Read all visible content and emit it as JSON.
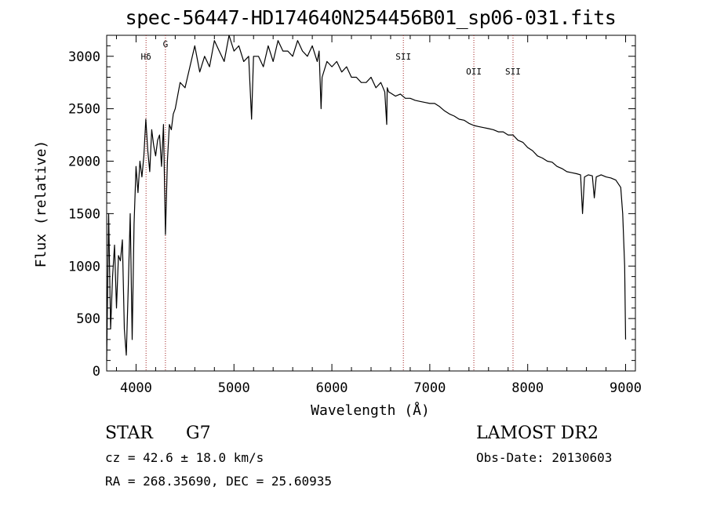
{
  "chart_data": {
    "type": "line",
    "title": "spec-56447-HD174640N254456B01_sp06-031.fits",
    "xlabel": "Wavelength (Å)",
    "ylabel": "Flux (relative)",
    "xlim": [
      3700,
      9100
    ],
    "ylim": [
      0,
      3200
    ],
    "xticks": [
      4000,
      5000,
      6000,
      7000,
      8000,
      9000
    ],
    "yticks": [
      0,
      500,
      1000,
      1500,
      2000,
      2500,
      3000
    ],
    "grid": false,
    "series": [
      {
        "x": [
          3700,
          3720,
          3740,
          3760,
          3780,
          3800,
          3820,
          3840,
          3860,
          3880,
          3900,
          3920,
          3940,
          3960,
          3980,
          4000,
          4020,
          4040,
          4060,
          4080,
          4100,
          4120,
          4140,
          4160,
          4180,
          4200,
          4220,
          4240,
          4260,
          4280,
          4300,
          4320,
          4340,
          4360,
          4380,
          4400,
          4450,
          4500,
          4550,
          4600,
          4650,
          4700,
          4750,
          4800,
          4850,
          4900,
          4950,
          5000,
          5050,
          5100,
          5150,
          5180,
          5200,
          5250,
          5300,
          5350,
          5400,
          5450,
          5500,
          5550,
          5600,
          5650,
          5700,
          5750,
          5800,
          5850,
          5870,
          5890,
          5900,
          5950,
          6000,
          6050,
          6100,
          6150,
          6200,
          6250,
          6300,
          6350,
          6400,
          6450,
          6500,
          6540,
          6560,
          6565,
          6580,
          6600,
          6650,
          6700,
          6750,
          6800,
          6850,
          6900,
          6950,
          7000,
          7050,
          7100,
          7150,
          7200,
          7250,
          7300,
          7350,
          7400,
          7450,
          7500,
          7550,
          7600,
          7650,
          7700,
          7750,
          7800,
          7850,
          7900,
          7950,
          8000,
          8050,
          8100,
          8150,
          8200,
          8250,
          8300,
          8350,
          8400,
          8450,
          8500,
          8540,
          8560,
          8580,
          8620,
          8660,
          8680,
          8700,
          8750,
          8800,
          8850,
          8900,
          8950,
          8970,
          8990,
          9000
        ],
        "y": [
          100,
          1500,
          400,
          900,
          1200,
          600,
          1100,
          1050,
          1250,
          400,
          150,
          800,
          1500,
          300,
          1400,
          1950,
          1700,
          2000,
          1850,
          2050,
          2400,
          2100,
          1900,
          2300,
          2150,
          2050,
          2200,
          2250,
          1950,
          2350,
          1300,
          2000,
          2350,
          2300,
          2450,
          2500,
          2750,
          2700,
          2900,
          3100,
          2850,
          3000,
          2900,
          3150,
          3050,
          2950,
          3200,
          3050,
          3100,
          2950,
          3000,
          2400,
          3000,
          3000,
          2900,
          3100,
          2950,
          3150,
          3050,
          3050,
          3000,
          3150,
          3050,
          3000,
          3100,
          2950,
          3050,
          2500,
          2800,
          2950,
          2900,
          2950,
          2850,
          2900,
          2800,
          2800,
          2750,
          2750,
          2800,
          2700,
          2750,
          2660,
          2350,
          2700,
          2660,
          2650,
          2620,
          2640,
          2600,
          2600,
          2580,
          2570,
          2560,
          2550,
          2550,
          2520,
          2480,
          2450,
          2430,
          2400,
          2390,
          2360,
          2340,
          2330,
          2320,
          2310,
          2300,
          2280,
          2280,
          2250,
          2250,
          2200,
          2180,
          2130,
          2100,
          2050,
          2030,
          2000,
          1990,
          1950,
          1930,
          1900,
          1890,
          1880,
          1870,
          1500,
          1850,
          1870,
          1860,
          1650,
          1850,
          1870,
          1850,
          1840,
          1820,
          1750,
          1500,
          1000,
          300
        ]
      }
    ],
    "lines": [
      {
        "label": "Hδ",
        "x": 4102
      },
      {
        "label": "G",
        "x": 4300
      },
      {
        "label": "SII",
        "x": 6730
      },
      {
        "label": "OII",
        "x": 7450
      },
      {
        "label": "SII",
        "x": 7850
      }
    ]
  },
  "info": {
    "object_type": "STAR",
    "subclass": "G7",
    "survey": "LAMOST DR2",
    "velocity": "cz = 42.6 ± 18.0 km/s",
    "obs_date": "Obs-Date: 20130603",
    "coords": "RA = 268.35690, DEC =  25.60935"
  },
  "colors": {
    "spectrum": "#000000",
    "line_marker": "#a02020",
    "axis": "#000000"
  }
}
